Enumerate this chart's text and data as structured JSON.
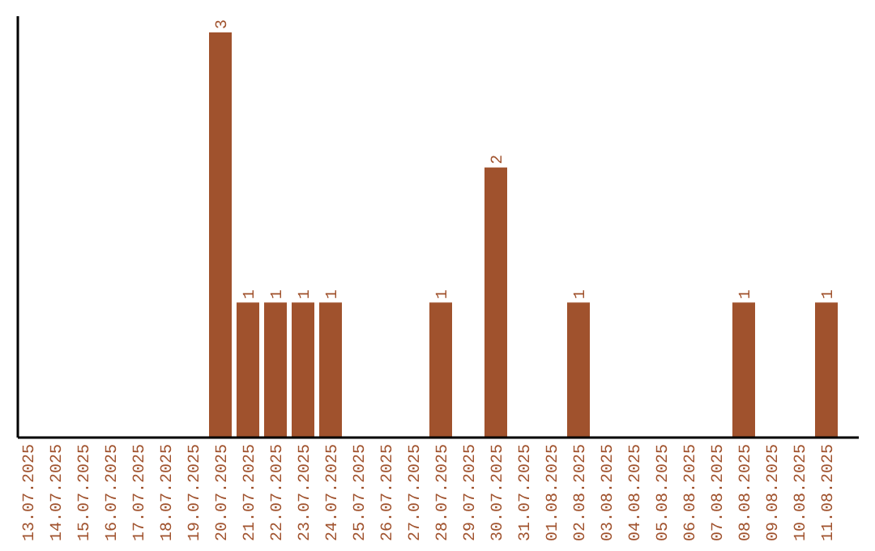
{
  "chart_data": {
    "type": "bar",
    "categories": [
      "13.07.2025",
      "14.07.2025",
      "15.07.2025",
      "16.07.2025",
      "17.07.2025",
      "18.07.2025",
      "19.07.2025",
      "20.07.2025",
      "21.07.2025",
      "22.07.2025",
      "23.07.2025",
      "24.07.2025",
      "25.07.2025",
      "26.07.2025",
      "27.07.2025",
      "28.07.2025",
      "29.07.2025",
      "30.07.2025",
      "31.07.2025",
      "01.08.2025",
      "02.08.2025",
      "03.08.2025",
      "04.08.2025",
      "05.08.2025",
      "06.08.2025",
      "07.08.2025",
      "08.08.2025",
      "09.08.2025",
      "10.08.2025",
      "11.08.2025"
    ],
    "values": [
      0,
      0,
      0,
      0,
      0,
      0,
      0,
      3,
      1,
      1,
      1,
      1,
      0,
      0,
      0,
      1,
      0,
      2,
      0,
      0,
      1,
      0,
      0,
      0,
      0,
      0,
      1,
      0,
      0,
      1
    ],
    "value_labels": [
      null,
      null,
      null,
      null,
      null,
      null,
      null,
      "3",
      "1",
      "1",
      "1",
      "1",
      null,
      null,
      null,
      "1",
      null,
      "2",
      null,
      null,
      "1",
      null,
      null,
      null,
      null,
      null,
      "1",
      null,
      null,
      "1"
    ],
    "color": "#a0522d",
    "tick_labels": "x"
  }
}
